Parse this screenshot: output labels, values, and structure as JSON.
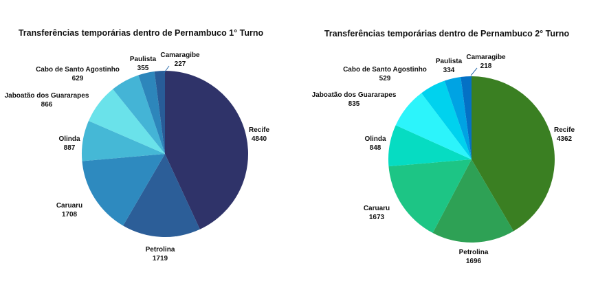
{
  "chart_data": [
    {
      "type": "pie",
      "title": "Transferências temporárias dentro de Pernambuco 1° Turno",
      "categories": [
        "Recife",
        "Petrolina",
        "Caruaru",
        "Olinda",
        "Jaboatão dos Guararapes",
        "Cabo de Santo Agostinho",
        "Paulista",
        "Camaragibe"
      ],
      "values": [
        4840,
        1719,
        1708,
        887,
        866,
        629,
        355,
        227
      ],
      "colors": [
        "#2f3369",
        "#2c5e98",
        "#2e8abf",
        "#45b8d6",
        "#6ae2ea",
        "#44b4d6",
        "#2d86bb",
        "#285c98"
      ]
    },
    {
      "type": "pie",
      "title": "Transferências temporárias dentro de Pernambuco 2° Turno",
      "categories": [
        "Recife",
        "Petrolina",
        "Caruaru",
        "Olinda",
        "Jaboatão dos Guararapes",
        "Cabo de Santo Agostinho",
        "Paulista",
        "Camaragibe"
      ],
      "values": [
        4362,
        1696,
        1673,
        848,
        835,
        529,
        334,
        218
      ],
      "colors": [
        "#3a7f22",
        "#2ea155",
        "#1dc585",
        "#06dcc2",
        "#2cf4fb",
        "#00d2ee",
        "#00a3e3",
        "#0471c5"
      ]
    }
  ]
}
